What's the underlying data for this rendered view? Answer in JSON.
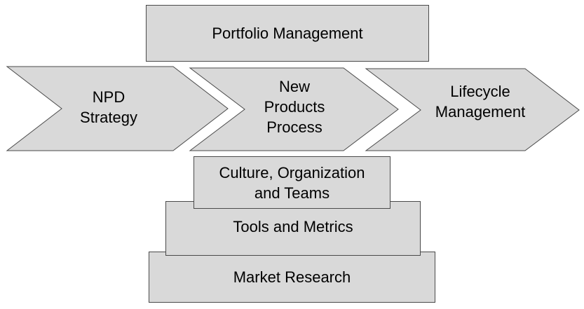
{
  "top": {
    "portfolio": "Portfolio Management"
  },
  "chevrons": [
    {
      "label": "NPD\nStrategy"
    },
    {
      "label": "New\nProducts\nProcess"
    },
    {
      "label": "Lifecycle\nManagement"
    }
  ],
  "foundation": {
    "culture": "Culture, Organization\nand Teams",
    "tools": "Tools and Metrics",
    "market": "Market Research"
  },
  "colors": {
    "fill": "#d9d9d9",
    "stroke": "#4a4a4a",
    "text": "#000000"
  }
}
